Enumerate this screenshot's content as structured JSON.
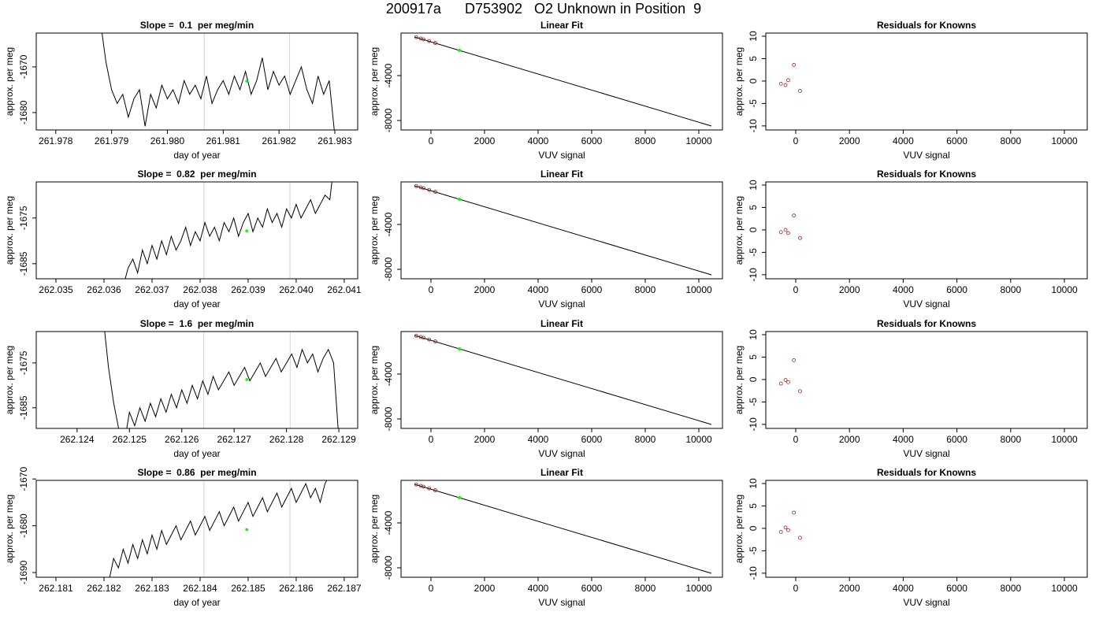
{
  "title": "200917a      D753902   O2 Unknown in Position  9",
  "chart_data": [
    {
      "type": "line",
      "title": "Slope =  0.1  per meg/min",
      "xlabel": "day of year",
      "ylabel": "approx. per meg",
      "x": [
        261.9788,
        261.9789,
        261.979,
        261.9791,
        261.9792,
        261.9793,
        261.9794,
        261.9795,
        261.9796,
        261.9797,
        261.9798,
        261.9799,
        261.98,
        261.9801,
        261.9802,
        261.9803,
        261.9804,
        261.9805,
        261.9806,
        261.9807,
        261.9808,
        261.9809,
        261.981,
        261.9811,
        261.9812,
        261.9813,
        261.9814,
        261.9815,
        261.9816,
        261.9817,
        261.9818,
        261.9819,
        261.982,
        261.9821,
        261.9822,
        261.9823,
        261.9824,
        261.9825,
        261.9826,
        261.9827,
        261.9828,
        261.9829,
        261.983
      ],
      "series": [
        {
          "color": "#000000",
          "values": [
            -1660,
            -1669,
            -1675,
            -1678,
            -1676,
            -1681,
            -1677,
            -1675,
            -1683,
            -1676,
            -1679,
            -1674,
            -1677,
            -1675,
            -1678,
            -1673,
            -1676,
            -1674,
            -1677,
            -1672,
            -1678,
            -1675,
            -1673,
            -1676,
            -1672,
            -1675,
            -1671,
            -1676,
            -1673,
            -1668,
            -1675,
            -1671,
            -1674,
            -1672,
            -1676,
            -1673,
            -1670,
            -1675,
            -1678,
            -1672,
            -1676,
            -1673,
            -1685
          ]
        }
      ],
      "vlines": {
        "values": [
          261.98066,
          261.98219
        ],
        "color": "#d3d3d3"
      },
      "highlight": {
        "x": 261.98142,
        "y": -1673.1,
        "color": "#00ff00"
      },
      "xlim": [
        261.97765,
        261.98341
      ],
      "ylim": [
        -1683.8,
        -1662.6
      ],
      "xticks": [
        261.978,
        261.979,
        {
          "value": 261.98,
          "label": "261.980"
        },
        261.981,
        261.982,
        261.983
      ],
      "yticks": [
        -1680,
        -1670
      ]
    },
    {
      "type": "fit",
      "title": "Linear Fit",
      "xlabel": "VUV signal",
      "ylabel": "approx. per meg",
      "knowns": {
        "x": [
          -550,
          -380,
          -280,
          -70,
          160
        ],
        "y": [
          -580,
          -700,
          -770,
          -920,
          -1090
        ],
        "color": "#8b1a1a"
      },
      "unknown": {
        "x": 1060,
        "y": -1754,
        "color": "#00ff00"
      },
      "fit_line": {
        "x": [
          -620,
          10470
        ],
        "y": [
          -551,
          -8491
        ]
      },
      "xlim": [
        -1118,
        10882
      ],
      "ylim": [
        -8842,
        -210
      ],
      "xticks": [
        0,
        2000,
        4000,
        6000,
        8000,
        10000
      ],
      "yticks": [
        -8000,
        -4000
      ]
    },
    {
      "type": "scatter",
      "title": "Residuals for Knowns",
      "xlabel": "VUV signal",
      "ylabel": "approx. per meg",
      "x": [
        -550,
        -380,
        -280,
        -70,
        160
      ],
      "values": [
        -0.6,
        -0.9,
        0.2,
        3.6,
        -2.2
      ],
      "color": "#b22222",
      "xlim": [
        -1114,
        10850
      ],
      "ylim": [
        -10.9,
        10.7
      ],
      "xticks": [
        0,
        2000,
        4000,
        6000,
        8000,
        10000
      ],
      "yticks": [
        -10,
        -5,
        0,
        5,
        10
      ]
    },
    {
      "type": "line",
      "title": "Slope =  0.82  per meg/min",
      "xlabel": "day of year",
      "ylabel": "approx. per meg",
      "x": [
        262.0364,
        262.0365,
        262.0366,
        262.0367,
        262.0368,
        262.0369,
        262.037,
        262.0371,
        262.0372,
        262.0373,
        262.0374,
        262.0375,
        262.0376,
        262.0377,
        262.0378,
        262.0379,
        262.038,
        262.0381,
        262.0382,
        262.0383,
        262.0384,
        262.0385,
        262.0386,
        262.0387,
        262.0388,
        262.0389,
        262.039,
        262.0391,
        262.0392,
        262.0393,
        262.0394,
        262.0395,
        262.0396,
        262.0397,
        262.0398,
        262.0399,
        262.04,
        262.0401,
        262.0402,
        262.0403,
        262.0404,
        262.0405,
        262.0406,
        262.0407,
        262.0408
      ],
      "series": [
        {
          "color": "#000000",
          "values": [
            -1690,
            -1686,
            -1684,
            -1687,
            -1682,
            -1685,
            -1681,
            -1684,
            -1680,
            -1683,
            -1679,
            -1682,
            -1680,
            -1677,
            -1681,
            -1678,
            -1680,
            -1676,
            -1679,
            -1677,
            -1680,
            -1676,
            -1678,
            -1675,
            -1679,
            -1676,
            -1674,
            -1678,
            -1675,
            -1677,
            -1673,
            -1676,
            -1674,
            -1677,
            -1673,
            -1675,
            -1672,
            -1675,
            -1673,
            -1671,
            -1674,
            -1672,
            -1670,
            -1671,
            -1662
          ]
        }
      ],
      "vlines": {
        "values": [
          262.03808,
          262.03987
        ],
        "color": "#d3d3d3"
      },
      "highlight": {
        "x": 262.03897,
        "y": -1677.8,
        "color": "#00ff00"
      },
      "xlim": [
        262.03459,
        262.04128
      ],
      "ylim": [
        -1688.3,
        -1667.1
      ],
      "xticks": [
        262.035,
        262.036,
        262.037,
        262.038,
        262.039,
        {
          "value": 262.04,
          "label": "262.040"
        },
        262.041
      ],
      "yticks": [
        -1685,
        -1675
      ]
    },
    {
      "type": "fit",
      "title": "Linear Fit",
      "xlabel": "VUV signal",
      "ylabel": "approx. per meg",
      "knowns": {
        "x": [
          -550,
          -380,
          -280,
          -70,
          160
        ],
        "y": [
          -580,
          -700,
          -770,
          -920,
          -1090
        ],
        "color": "#8b1a1a"
      },
      "unknown": {
        "x": 1060,
        "y": -1754,
        "color": "#00ff00"
      },
      "fit_line": {
        "x": [
          -620,
          10470
        ],
        "y": [
          -551,
          -8491
        ]
      },
      "xlim": [
        -1118,
        10882
      ],
      "ylim": [
        -8842,
        -210
      ],
      "xticks": [
        0,
        2000,
        4000,
        6000,
        8000,
        10000
      ],
      "yticks": [
        -8000,
        -4000
      ]
    },
    {
      "type": "scatter",
      "title": "Residuals for Knowns",
      "xlabel": "VUV signal",
      "ylabel": "approx. per meg",
      "x": [
        -550,
        -380,
        -280,
        -70,
        160
      ],
      "values": [
        -0.5,
        0,
        -0.7,
        3.2,
        -1.8
      ],
      "color": "#b22222",
      "xlim": [
        -1114,
        10850
      ],
      "ylim": [
        -10.9,
        10.7
      ],
      "xticks": [
        0,
        2000,
        4000,
        6000,
        8000,
        10000
      ],
      "yticks": [
        -10,
        -5,
        0,
        5,
        10
      ]
    },
    {
      "type": "line",
      "title": "Slope =  1.6  per meg/min",
      "xlabel": "day of year",
      "ylabel": "approx. per meg",
      "x": [
        262.1245,
        262.1246,
        262.1247,
        262.1248,
        262.1249,
        262.125,
        262.1251,
        262.1252,
        262.1253,
        262.1254,
        262.1255,
        262.1256,
        262.1257,
        262.1258,
        262.1259,
        262.126,
        262.1261,
        262.1262,
        262.1263,
        262.1264,
        262.1265,
        262.1266,
        262.1267,
        262.1268,
        262.1269,
        262.127,
        262.1271,
        262.1272,
        262.1273,
        262.1274,
        262.1275,
        262.1276,
        262.1277,
        262.1278,
        262.1279,
        262.128,
        262.1281,
        262.1282,
        262.1283,
        262.1284,
        262.1285,
        262.1286,
        262.1287,
        262.1288,
        262.1289,
        262.129
      ],
      "series": [
        {
          "color": "#000000",
          "values": [
            -1665,
            -1676,
            -1684,
            -1690,
            -1693,
            -1686,
            -1689,
            -1685,
            -1688,
            -1684,
            -1687,
            -1683,
            -1686,
            -1682,
            -1685,
            -1681,
            -1684,
            -1680,
            -1683,
            -1679,
            -1682,
            -1678,
            -1681,
            -1679,
            -1677,
            -1680,
            -1678,
            -1676,
            -1679,
            -1677,
            -1675,
            -1678,
            -1676,
            -1674,
            -1677,
            -1675,
            -1673,
            -1676,
            -1672,
            -1675,
            -1673,
            -1677,
            -1674,
            -1672,
            -1675,
            -1692
          ]
        }
      ],
      "vlines": {
        "values": [
          262.12642,
          262.12807
        ],
        "color": "#d3d3d3"
      },
      "highlight": {
        "x": 262.12724,
        "y": -1678.7,
        "color": "#00ff00"
      },
      "xlim": [
        262.12322,
        262.12936
      ],
      "ylim": [
        -1689.6,
        -1668.0
      ],
      "xticks": [
        262.124,
        262.125,
        262.126,
        262.127,
        262.128,
        262.129
      ],
      "yticks": [
        -1685,
        -1675
      ]
    },
    {
      "type": "fit",
      "title": "Linear Fit",
      "xlabel": "VUV signal",
      "ylabel": "approx. per meg",
      "knowns": {
        "x": [
          -550,
          -380,
          -280,
          -70,
          160
        ],
        "y": [
          -580,
          -700,
          -770,
          -920,
          -1090
        ],
        "color": "#8b1a1a"
      },
      "unknown": {
        "x": 1060,
        "y": -1754,
        "color": "#00ff00"
      },
      "fit_line": {
        "x": [
          -620,
          10470
        ],
        "y": [
          -551,
          -8491
        ]
      },
      "xlim": [
        -1118,
        10882
      ],
      "ylim": [
        -8842,
        -210
      ],
      "xticks": [
        0,
        2000,
        4000,
        6000,
        8000,
        10000
      ],
      "yticks": [
        -8000,
        -4000
      ]
    },
    {
      "type": "scatter",
      "title": "Residuals for Knowns",
      "xlabel": "VUV signal",
      "ylabel": "approx. per meg",
      "x": [
        -550,
        -380,
        -280,
        -70,
        160
      ],
      "values": [
        -0.9,
        -0.1,
        -0.6,
        4.3,
        -2.6
      ],
      "color": "#b22222",
      "xlim": [
        -1114,
        10850
      ],
      "ylim": [
        -10.9,
        10.7
      ],
      "xticks": [
        0,
        2000,
        4000,
        6000,
        8000,
        10000
      ],
      "yticks": [
        -10,
        -5,
        0,
        5,
        10
      ]
    },
    {
      "type": "line",
      "title": "Slope =  0.86  per meg/min",
      "xlabel": "day of year",
      "ylabel": "approx. per meg",
      "x": [
        262.1821,
        262.1822,
        262.1823,
        262.1824,
        262.1825,
        262.1826,
        262.1827,
        262.1828,
        262.1829,
        262.183,
        262.1831,
        262.1832,
        262.1833,
        262.1834,
        262.1835,
        262.1836,
        262.1837,
        262.1838,
        262.1839,
        262.184,
        262.1841,
        262.1842,
        262.1843,
        262.1844,
        262.1845,
        262.1846,
        262.1847,
        262.1848,
        262.1849,
        262.185,
        262.1851,
        262.1852,
        262.1853,
        262.1854,
        262.1855,
        262.1856,
        262.1857,
        262.1858,
        262.1859,
        262.186,
        262.1861,
        262.1862,
        262.1863,
        262.1864,
        262.1865,
        262.1866,
        262.1867,
        262.1868
      ],
      "series": [
        {
          "color": "#000000",
          "values": [
            -1692,
            -1687,
            -1689,
            -1685,
            -1688,
            -1684,
            -1687,
            -1683,
            -1686,
            -1682,
            -1685,
            -1681,
            -1684,
            -1682,
            -1680,
            -1683,
            -1681,
            -1679,
            -1682,
            -1680,
            -1678,
            -1681,
            -1679,
            -1677,
            -1680,
            -1678,
            -1676,
            -1679,
            -1677,
            -1675,
            -1678,
            -1676,
            -1674,
            -1677,
            -1675,
            -1673,
            -1676,
            -1674,
            -1672,
            -1675,
            -1673,
            -1671,
            -1674,
            -1672,
            -1675,
            -1671,
            -1669,
            -1660
          ]
        }
      ],
      "vlines": {
        "values": [
          262.18408,
          262.18587
        ],
        "color": "#d3d3d3"
      },
      "highlight": {
        "x": 262.18497,
        "y": -1680.8,
        "color": "#00ff00"
      },
      "xlim": [
        262.18059,
        262.18728
      ],
      "ylim": [
        -1691.0,
        -1670.3
      ],
      "xticks": [
        262.181,
        262.182,
        262.183,
        262.184,
        262.185,
        262.186,
        262.187
      ],
      "yticks": [
        -1690,
        -1680,
        -1670
      ]
    },
    {
      "type": "fit",
      "title": "Linear Fit",
      "xlabel": "VUV signal",
      "ylabel": "approx. per meg",
      "knowns": {
        "x": [
          -550,
          -380,
          -280,
          -70,
          160
        ],
        "y": [
          -580,
          -700,
          -770,
          -920,
          -1090
        ],
        "color": "#8b1a1a"
      },
      "unknown": {
        "x": 1060,
        "y": -1754,
        "color": "#00ff00"
      },
      "fit_line": {
        "x": [
          -620,
          10470
        ],
        "y": [
          -551,
          -8491
        ]
      },
      "xlim": [
        -1118,
        10882
      ],
      "ylim": [
        -8842,
        -210
      ],
      "xticks": [
        0,
        2000,
        4000,
        6000,
        8000,
        10000
      ],
      "yticks": [
        -8000,
        -4000
      ]
    },
    {
      "type": "scatter",
      "title": "Residuals for Knowns",
      "xlabel": "VUV signal",
      "ylabel": "approx. per meg",
      "x": [
        -550,
        -380,
        -280,
        -70,
        160
      ],
      "values": [
        -0.8,
        0.2,
        -0.4,
        3.5,
        -2.1
      ],
      "color": "#b22222",
      "xlim": [
        -1114,
        10850
      ],
      "ylim": [
        -10.9,
        10.7
      ],
      "xticks": [
        0,
        2000,
        4000,
        6000,
        8000,
        10000
      ],
      "yticks": [
        -10,
        -5,
        0,
        5,
        10
      ]
    }
  ]
}
